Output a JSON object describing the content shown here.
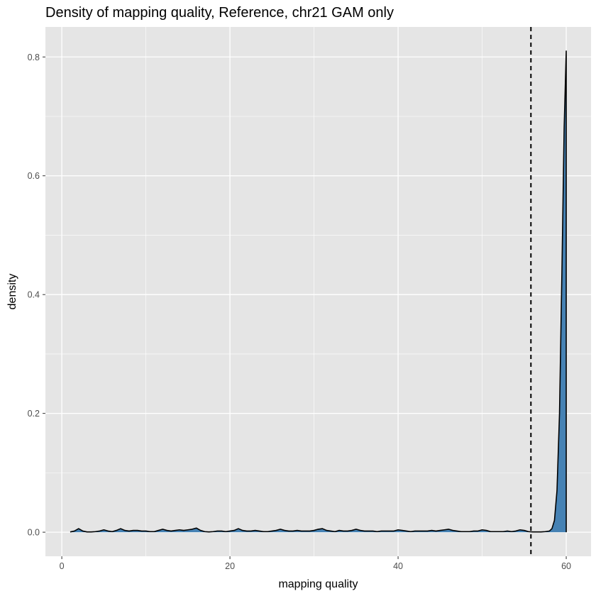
{
  "chart_data": {
    "type": "area",
    "title": "Density of mapping quality, Reference, chr21 GAM only",
    "xlabel": "mapping quality",
    "ylabel": "density",
    "xlim": [
      -1.95,
      62.95
    ],
    "ylim": [
      -0.0405,
      0.8505
    ],
    "x_ticks": [
      0,
      20,
      40,
      60
    ],
    "x_tick_labels": [
      "0",
      "20",
      "40",
      "60"
    ],
    "y_ticks": [
      0.0,
      0.2,
      0.4,
      0.6,
      0.8
    ],
    "y_tick_labels": [
      "0.0",
      "0.2",
      "0.4",
      "0.6",
      "0.8"
    ],
    "grid": true,
    "fill_color": "#4682b4",
    "line_color": "#000000",
    "panel_color": "#e5e5e5",
    "grid_color": "#ffffff",
    "vline": {
      "x": 55.8,
      "style": "dashed",
      "color": "#000000"
    },
    "x": [
      1,
      1.5,
      2,
      2.5,
      3,
      3.5,
      4,
      4.5,
      5,
      5.5,
      6,
      6.5,
      7,
      7.5,
      8,
      8.5,
      9,
      9.5,
      10,
      10.5,
      11,
      11.5,
      12,
      12.5,
      13,
      13.5,
      14,
      14.5,
      15,
      15.5,
      16,
      16.5,
      17,
      17.5,
      18,
      18.5,
      19,
      19.5,
      20,
      20.5,
      21,
      21.5,
      22,
      22.5,
      23,
      23.5,
      24,
      24.5,
      25,
      25.5,
      26,
      26.5,
      27,
      27.5,
      28,
      28.5,
      29,
      29.5,
      30,
      30.5,
      31,
      31.5,
      32,
      32.5,
      33,
      33.5,
      34,
      34.5,
      35,
      35.5,
      36,
      36.5,
      37,
      37.5,
      38,
      38.5,
      39,
      39.5,
      40,
      40.5,
      41,
      41.5,
      42,
      42.5,
      43,
      43.5,
      44,
      44.5,
      45,
      45.5,
      46,
      46.5,
      47,
      47.5,
      48,
      48.5,
      49,
      49.5,
      50,
      50.5,
      51,
      51.5,
      52,
      52.5,
      53,
      53.5,
      54,
      54.5,
      55,
      55.5,
      56,
      56.5,
      57,
      57.5,
      58,
      58.3,
      58.6,
      58.9,
      59.2,
      59.5,
      59.75,
      60
    ],
    "y": [
      0.0005,
      0.002,
      0.006,
      0.002,
      0.0005,
      0.0005,
      0.001,
      0.002,
      0.004,
      0.002,
      0.001,
      0.003,
      0.006,
      0.003,
      0.002,
      0.003,
      0.003,
      0.002,
      0.002,
      0.001,
      0.001,
      0.003,
      0.005,
      0.003,
      0.002,
      0.003,
      0.004,
      0.003,
      0.004,
      0.005,
      0.007,
      0.003,
      0.001,
      0.0005,
      0.001,
      0.002,
      0.002,
      0.001,
      0.002,
      0.003,
      0.006,
      0.003,
      0.002,
      0.002,
      0.003,
      0.002,
      0.001,
      0.001,
      0.002,
      0.003,
      0.005,
      0.003,
      0.002,
      0.002,
      0.003,
      0.002,
      0.002,
      0.002,
      0.003,
      0.005,
      0.006,
      0.003,
      0.002,
      0.001,
      0.003,
      0.002,
      0.002,
      0.003,
      0.005,
      0.003,
      0.002,
      0.002,
      0.002,
      0.001,
      0.002,
      0.002,
      0.002,
      0.002,
      0.004,
      0.003,
      0.002,
      0.001,
      0.002,
      0.002,
      0.002,
      0.002,
      0.003,
      0.002,
      0.003,
      0.004,
      0.005,
      0.003,
      0.002,
      0.001,
      0.001,
      0.001,
      0.002,
      0.002,
      0.004,
      0.003,
      0.001,
      0.001,
      0.001,
      0.001,
      0.002,
      0.001,
      0.002,
      0.004,
      0.003,
      0.001,
      0.0005,
      0.0005,
      0.0005,
      0.001,
      0.002,
      0.006,
      0.02,
      0.07,
      0.2,
      0.45,
      0.68,
      0.81
    ]
  }
}
